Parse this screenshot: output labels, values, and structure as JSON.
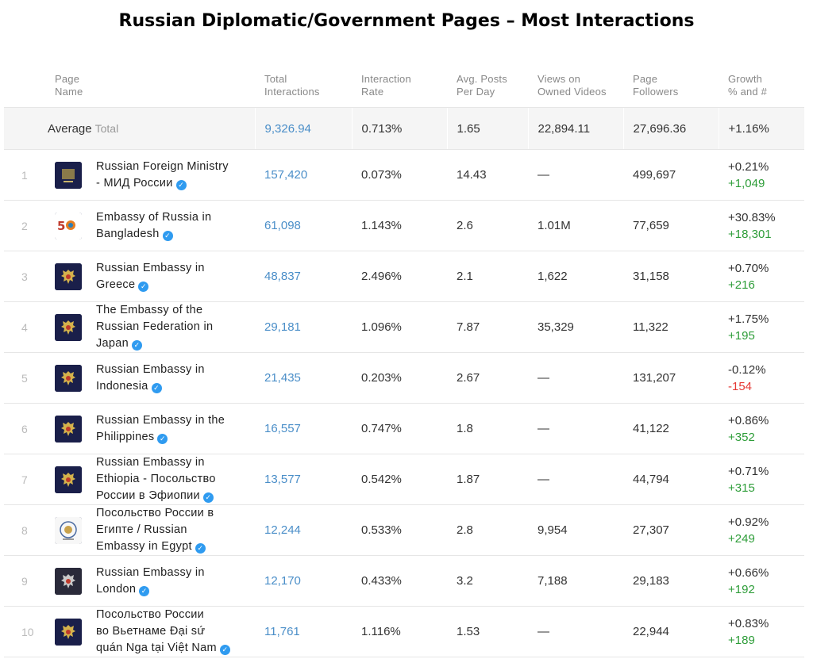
{
  "title": "Russian Diplomatic/Government Pages – Most Interactions",
  "columns": {
    "page_name": [
      "Page",
      "Name"
    ],
    "total_interactions": [
      "Total",
      "Interactions"
    ],
    "interaction_rate": [
      "Interaction",
      "Rate"
    ],
    "avg_posts": [
      "Avg. Posts",
      "Per Day"
    ],
    "views": [
      "Views on",
      "Owned Videos"
    ],
    "followers": [
      "Page",
      "Followers"
    ],
    "growth": [
      "Growth",
      "% and #"
    ]
  },
  "average": {
    "label": "Average",
    "sublabel": "Total",
    "total_interactions": "9,326.94",
    "interaction_rate": "0.713%",
    "avg_posts": "1.65",
    "views": "22,894.11",
    "followers": "27,696.36",
    "growth": "+1.16%"
  },
  "rows": [
    {
      "rank": "1",
      "name": [
        "Russian Foreign Ministry",
        "- МИД России"
      ],
      "logo": "ministry-emblem",
      "total": "157,420",
      "rate": "0.073%",
      "posts": "14.43",
      "views": "—",
      "followers": "499,697",
      "growth_pct": "+0.21%",
      "growth_num": "+1,049"
    },
    {
      "rank": "2",
      "name": [
        "Embassy of Russia in",
        "Bangladesh"
      ],
      "logo": "bangladesh-50-logo",
      "total": "61,098",
      "rate": "1.143%",
      "posts": "2.6",
      "views": "1.01M",
      "followers": "77,659",
      "growth_pct": "+30.83%",
      "growth_num": "+18,301"
    },
    {
      "rank": "3",
      "name": [
        "Russian Embassy in",
        "Greece"
      ],
      "logo": "eagle-emblem",
      "total": "48,837",
      "rate": "2.496%",
      "posts": "2.1",
      "views": "1,622",
      "followers": "31,158",
      "growth_pct": "+0.70%",
      "growth_num": "+216"
    },
    {
      "rank": "4",
      "name": [
        "The Embassy of the",
        "Russian Federation in",
        "Japan"
      ],
      "logo": "eagle-emblem",
      "total": "29,181",
      "rate": "1.096%",
      "posts": "7.87",
      "views": "35,329",
      "followers": "11,322",
      "growth_pct": "+1.75%",
      "growth_num": "+195"
    },
    {
      "rank": "5",
      "name": [
        "Russian Embassy in",
        "Indonesia"
      ],
      "logo": "eagle-emblem",
      "total": "21,435",
      "rate": "0.203%",
      "posts": "2.67",
      "views": "—",
      "followers": "131,207",
      "growth_pct": "-0.12%",
      "growth_num": "-154"
    },
    {
      "rank": "6",
      "name": [
        "Russian Embassy in the",
        "Philippines"
      ],
      "logo": "eagle-emblem",
      "total": "16,557",
      "rate": "0.747%",
      "posts": "1.8",
      "views": "—",
      "followers": "41,122",
      "growth_pct": "+0.86%",
      "growth_num": "+352"
    },
    {
      "rank": "7",
      "name": [
        "Russian Embassy in",
        "Ethiopia - Посольство",
        "России в Эфиопии"
      ],
      "logo": "eagle-emblem",
      "total": "13,577",
      "rate": "0.542%",
      "posts": "1.87",
      "views": "—",
      "followers": "44,794",
      "growth_pct": "+0.71%",
      "growth_num": "+315"
    },
    {
      "rank": "8",
      "name": [
        "Посольство России в",
        "Египте / Russian",
        "Embassy in Egypt"
      ],
      "logo": "egypt-seal",
      "total": "12,244",
      "rate": "0.533%",
      "posts": "2.8",
      "views": "9,954",
      "followers": "27,307",
      "growth_pct": "+0.92%",
      "growth_num": "+249"
    },
    {
      "rank": "9",
      "name": [
        "Russian Embassy in",
        "London"
      ],
      "logo": "eagle-emblem-dark",
      "total": "12,170",
      "rate": "0.433%",
      "posts": "3.2",
      "views": "7,188",
      "followers": "29,183",
      "growth_pct": "+0.66%",
      "growth_num": "+192"
    },
    {
      "rank": "10",
      "name": [
        "Посольство России",
        "во Вьетнаме Đại sứ",
        "quán Nga tại Việt Nam"
      ],
      "logo": "eagle-emblem",
      "total": "11,761",
      "rate": "1.116%",
      "posts": "1.53",
      "views": "—",
      "followers": "22,944",
      "growth_pct": "+0.83%",
      "growth_num": "+189"
    }
  ],
  "colors": {
    "link": "#4a8ec8",
    "positive": "#2e9d39",
    "negative": "#e53935",
    "verified": "#2f9bf0",
    "average_row_bg": "#f5f5f5"
  }
}
